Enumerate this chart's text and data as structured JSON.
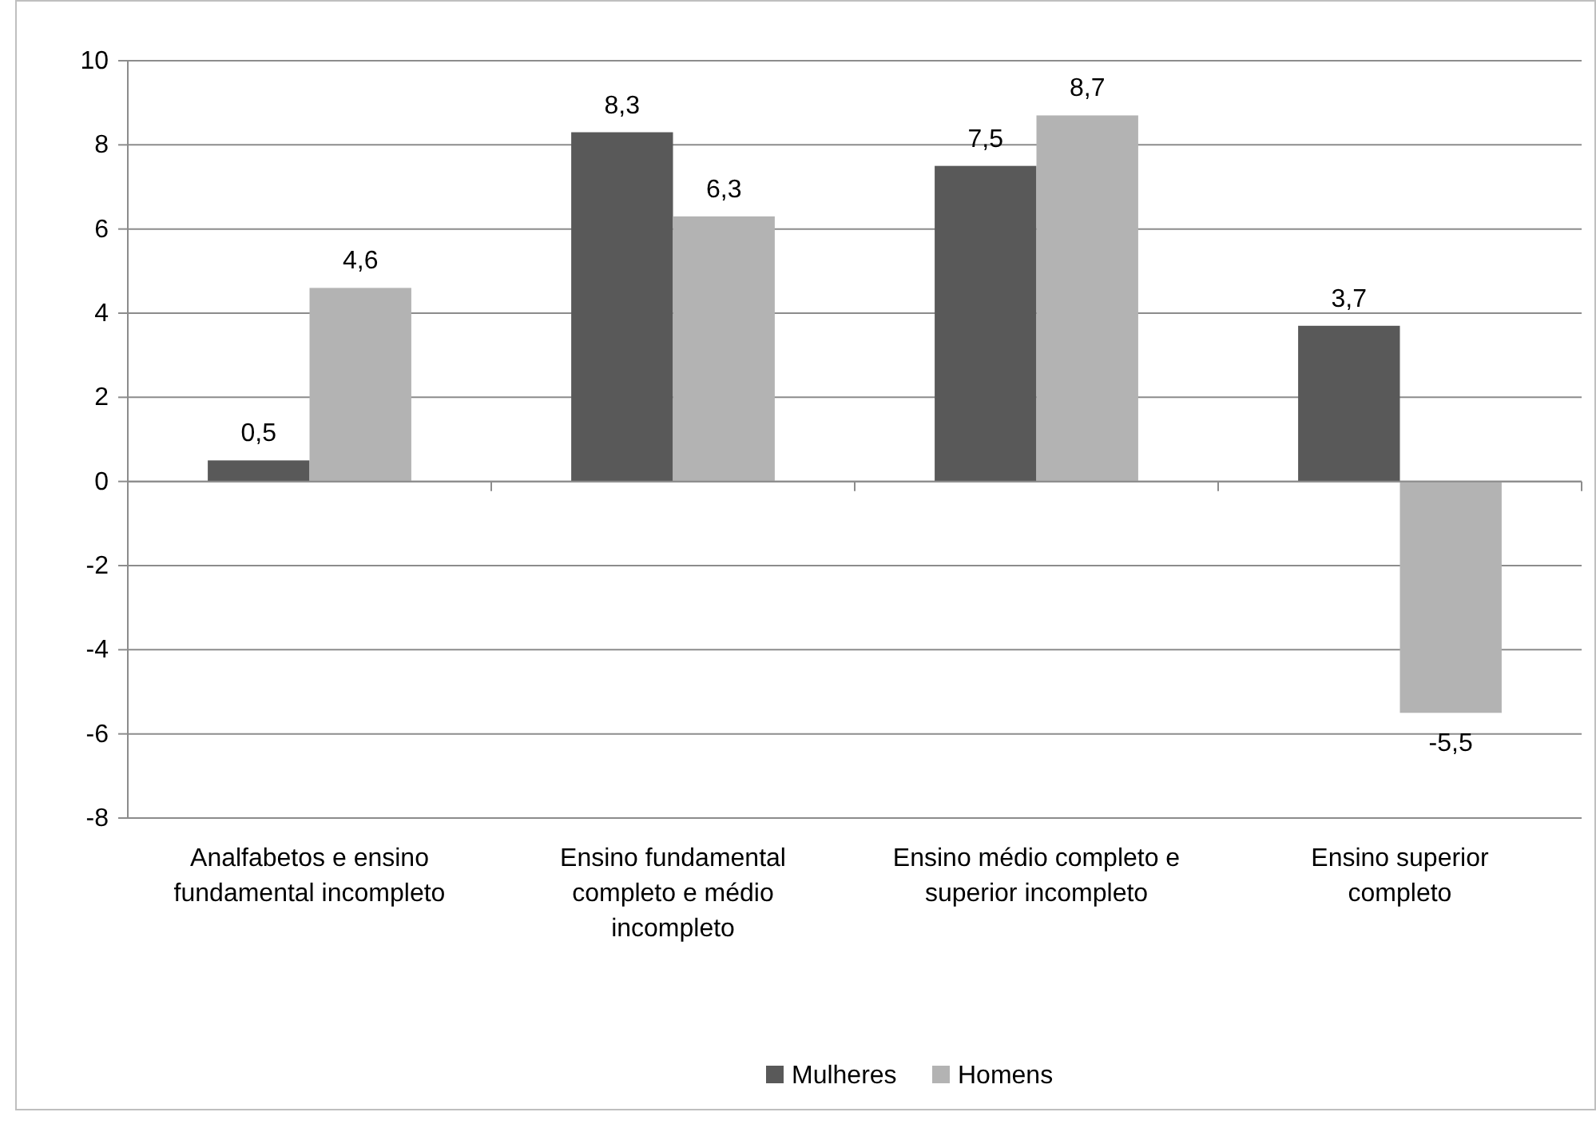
{
  "chart_data": {
    "type": "bar",
    "categories": [
      "Analfabetos e ensino fundamental incompleto",
      "Ensino fundamental completo e médio incompleto",
      "Ensino médio completo e superior incompleto",
      "Ensino superior completo"
    ],
    "series": [
      {
        "name": "Mulheres",
        "color": "#595959",
        "values": [
          0.5,
          8.3,
          7.5,
          3.7
        ],
        "value_labels": [
          "0,5",
          "8,3",
          "7,5",
          "3,7"
        ]
      },
      {
        "name": "Homens",
        "color": "#b3b3b3",
        "values": [
          4.6,
          6.3,
          8.7,
          -5.5
        ],
        "value_labels": [
          "4,6",
          "6,3",
          "8,7",
          "-5,5"
        ]
      }
    ],
    "ylim": [
      -8,
      10
    ],
    "yticks": [
      -8,
      -6,
      -4,
      -2,
      0,
      2,
      4,
      6,
      8,
      10
    ],
    "grid": "y",
    "legend": "bottom"
  }
}
